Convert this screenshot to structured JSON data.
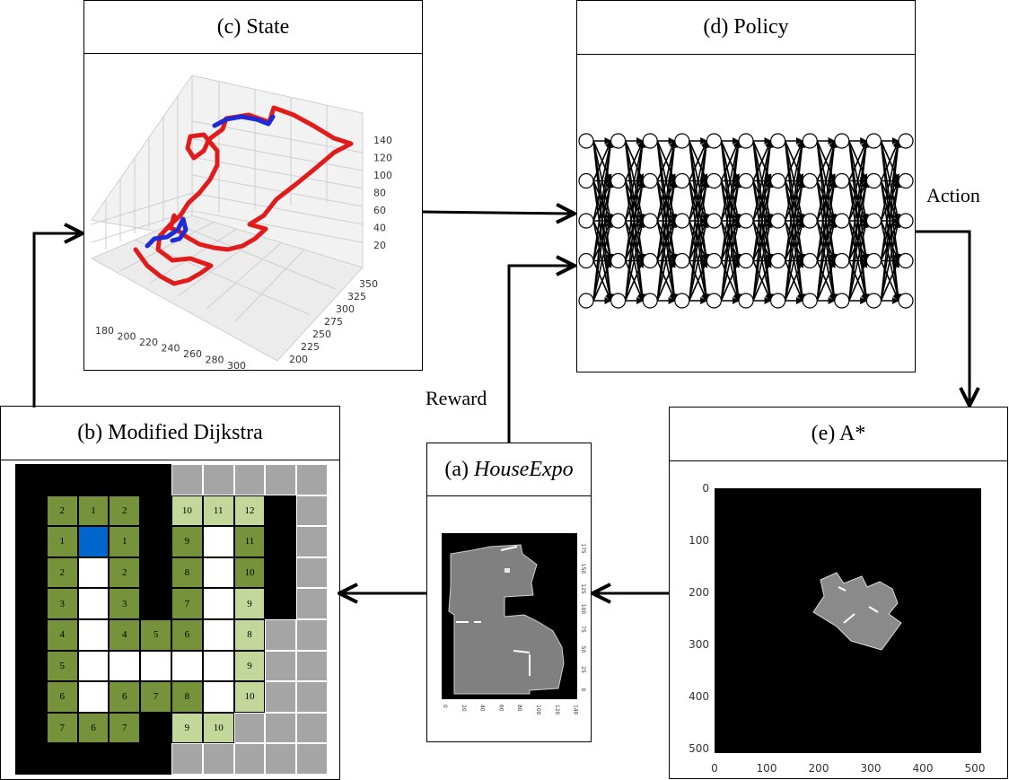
{
  "panels": {
    "state": {
      "title": "(c) State"
    },
    "policy": {
      "title": "(d) Policy"
    },
    "dijkstra": {
      "title": "(b) Modified Dijkstra"
    },
    "houseexpo": {
      "prefix": "(a) ",
      "name": "HouseExpo"
    },
    "astar": {
      "title": "(e) A*"
    }
  },
  "edge_labels": {
    "action": "Action",
    "reward": "Reward"
  },
  "state_plot": {
    "z_ticks": [
      "140",
      "120",
      "100",
      "80",
      "60",
      "40",
      "20"
    ],
    "x_ticks": [
      "180",
      "200",
      "220",
      "240",
      "260",
      "280",
      "300"
    ],
    "y_ticks": [
      "350",
      "325",
      "300",
      "275",
      "250",
      "225",
      "200"
    ],
    "colors": {
      "path": "#e11a1a",
      "highlight": "#1f2bd6"
    }
  },
  "houseexpo_plot": {
    "x_ticks": [
      "0",
      "20",
      "40",
      "60",
      "80",
      "100",
      "120",
      "140"
    ],
    "y_ticks": [
      "175",
      "150",
      "125",
      "100",
      "75",
      "50",
      "25",
      "0"
    ]
  },
  "astar_plot": {
    "x_ticks": [
      "0",
      "100",
      "200",
      "300",
      "400",
      "500"
    ],
    "y_ticks": [
      "0",
      "100",
      "200",
      "300",
      "400",
      "500"
    ]
  },
  "grid": {
    "colors": {
      "wall": "#000000",
      "unknown": "#a5a5a5",
      "free": "#ffffff",
      "dark": "#76933c",
      "light": "#c4d79b",
      "start": "#0066cc"
    },
    "rows": [
      [
        "W",
        "W",
        "W",
        "W",
        "W",
        "U",
        "U",
        "U",
        "U",
        "U"
      ],
      [
        "W",
        "D:2",
        "D:1",
        "D:2",
        "W",
        "L:10",
        "L:11",
        "L:12",
        "W",
        "U"
      ],
      [
        "W",
        "D:1",
        "S",
        "D:1",
        "W",
        "D:9",
        "F",
        "D:11",
        "W",
        "U"
      ],
      [
        "W",
        "D:2",
        "F",
        "D:2",
        "W",
        "D:8",
        "F",
        "D:10",
        "W",
        "U"
      ],
      [
        "W",
        "D:3",
        "F",
        "D:3",
        "W",
        "D:7",
        "F",
        "L:9",
        "W",
        "U"
      ],
      [
        "W",
        "D:4",
        "F",
        "D:4",
        "D:5",
        "D:6",
        "F",
        "L:8",
        "U",
        "U"
      ],
      [
        "W",
        "D:5",
        "F",
        "F",
        "F",
        "F",
        "F",
        "L:9",
        "U",
        "U"
      ],
      [
        "W",
        "D:6",
        "F",
        "D:6",
        "D:7",
        "D:8",
        "F",
        "L:10",
        "U",
        "U"
      ],
      [
        "W",
        "D:7",
        "D:6",
        "D:7",
        "W",
        "L:9",
        "L:10",
        "U",
        "U",
        "U"
      ],
      [
        "W",
        "W",
        "W",
        "W",
        "W",
        "U",
        "U",
        "U",
        "U",
        "U"
      ]
    ]
  }
}
